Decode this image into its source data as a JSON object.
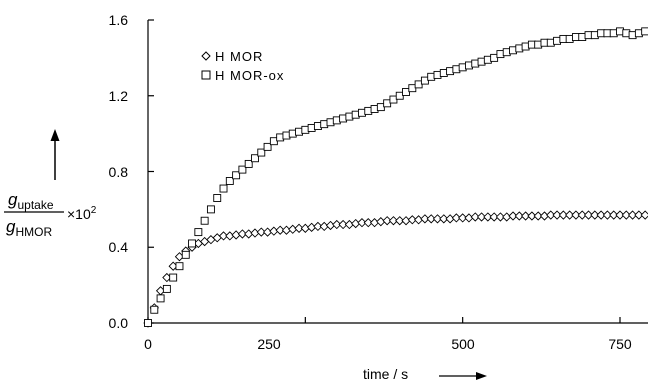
{
  "chart_data": {
    "type": "scatter",
    "xlabel": "time / s",
    "ylabel": {
      "numerator": "g",
      "numerator_sub": "uptake",
      "denominator": "g",
      "denominator_sub": "HMOR",
      "multiplier": "×10",
      "multiplier_exp": "2"
    },
    "xlim": [
      0,
      800
    ],
    "ylim": [
      0,
      1.6
    ],
    "xticks": [
      0,
      250,
      500,
      750
    ],
    "yticks": [
      0.0,
      0.4,
      0.8,
      1.2,
      1.6
    ],
    "xtick_labels": [
      "0",
      "250",
      "500",
      "750"
    ],
    "ytick_labels": [
      "0.0",
      "0.4",
      "0.8",
      "1.2",
      "1.6"
    ],
    "grid": false,
    "legend_position": "top-left",
    "series": [
      {
        "name": "H MOR",
        "marker": "diamond",
        "x": [
          0,
          10,
          20,
          30,
          40,
          50,
          60,
          70,
          80,
          90,
          100,
          110,
          120,
          130,
          140,
          150,
          160,
          170,
          180,
          190,
          200,
          210,
          220,
          230,
          240,
          250,
          260,
          270,
          280,
          290,
          300,
          310,
          320,
          330,
          340,
          350,
          360,
          370,
          380,
          390,
          400,
          410,
          420,
          430,
          440,
          450,
          460,
          470,
          480,
          490,
          500,
          510,
          520,
          530,
          540,
          550,
          560,
          570,
          580,
          590,
          600,
          610,
          620,
          630,
          640,
          650,
          660,
          670,
          680,
          690,
          700,
          710,
          720,
          730,
          740,
          750,
          760,
          770,
          780,
          790
        ],
        "y": [
          0.0,
          0.08,
          0.17,
          0.24,
          0.3,
          0.35,
          0.38,
          0.4,
          0.42,
          0.43,
          0.44,
          0.45,
          0.46,
          0.46,
          0.465,
          0.47,
          0.47,
          0.475,
          0.48,
          0.48,
          0.485,
          0.49,
          0.49,
          0.495,
          0.5,
          0.5,
          0.505,
          0.51,
          0.51,
          0.515,
          0.52,
          0.52,
          0.52,
          0.525,
          0.53,
          0.53,
          0.53,
          0.535,
          0.54,
          0.54,
          0.54,
          0.54,
          0.545,
          0.545,
          0.55,
          0.55,
          0.55,
          0.55,
          0.55,
          0.555,
          0.555,
          0.555,
          0.56,
          0.56,
          0.56,
          0.56,
          0.56,
          0.56,
          0.565,
          0.565,
          0.565,
          0.565,
          0.565,
          0.565,
          0.57,
          0.57,
          0.57,
          0.57,
          0.57,
          0.57,
          0.57,
          0.57,
          0.57,
          0.57,
          0.57,
          0.57,
          0.57,
          0.57,
          0.57,
          0.57
        ]
      },
      {
        "name": "H MOR-ox",
        "marker": "square",
        "x": [
          0,
          10,
          20,
          30,
          40,
          50,
          60,
          70,
          80,
          90,
          100,
          110,
          120,
          130,
          140,
          150,
          160,
          170,
          180,
          190,
          200,
          210,
          220,
          230,
          240,
          250,
          260,
          270,
          280,
          290,
          300,
          310,
          320,
          330,
          340,
          350,
          360,
          370,
          380,
          390,
          400,
          410,
          420,
          430,
          440,
          450,
          460,
          470,
          480,
          490,
          500,
          510,
          520,
          530,
          540,
          550,
          560,
          570,
          580,
          590,
          600,
          610,
          620,
          630,
          640,
          650,
          660,
          670,
          680,
          690,
          700,
          710,
          720,
          730,
          740,
          750,
          760,
          770,
          780,
          790
        ],
        "y": [
          0.0,
          0.07,
          0.13,
          0.18,
          0.24,
          0.3,
          0.36,
          0.42,
          0.48,
          0.54,
          0.6,
          0.66,
          0.71,
          0.75,
          0.78,
          0.81,
          0.84,
          0.87,
          0.9,
          0.93,
          0.96,
          0.98,
          0.99,
          1.0,
          1.01,
          1.02,
          1.03,
          1.04,
          1.05,
          1.06,
          1.07,
          1.08,
          1.09,
          1.1,
          1.11,
          1.12,
          1.13,
          1.14,
          1.16,
          1.18,
          1.2,
          1.22,
          1.24,
          1.26,
          1.28,
          1.3,
          1.31,
          1.32,
          1.33,
          1.34,
          1.35,
          1.36,
          1.37,
          1.38,
          1.39,
          1.4,
          1.42,
          1.43,
          1.44,
          1.45,
          1.46,
          1.47,
          1.47,
          1.48,
          1.48,
          1.49,
          1.5,
          1.5,
          1.51,
          1.51,
          1.52,
          1.52,
          1.53,
          1.53,
          1.53,
          1.54,
          1.53,
          1.52,
          1.53,
          1.54
        ]
      }
    ]
  }
}
